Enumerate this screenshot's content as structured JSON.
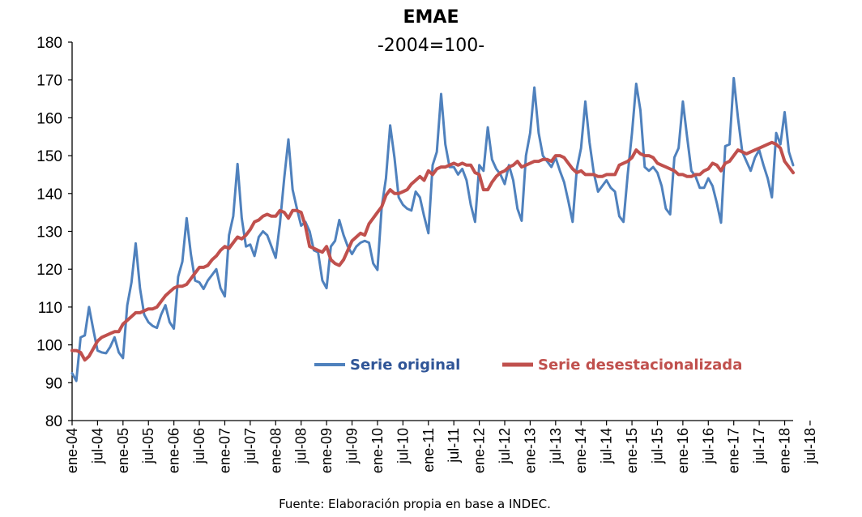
{
  "chart_data": {
    "type": "line",
    "title": "EMAE",
    "subtitle": "-2004=100-",
    "source": "Fuente: Elaboración propia en base a INDEC.",
    "ylim": [
      80,
      180
    ],
    "yticks": [
      80,
      90,
      100,
      110,
      120,
      130,
      140,
      150,
      160,
      170,
      180
    ],
    "xtick_labels": [
      "ene-04",
      "jul-04",
      "ene-05",
      "jul-05",
      "ene-06",
      "jul-06",
      "ene-07",
      "jul-07",
      "ene-08",
      "jul-08",
      "ene-09",
      "jul-09",
      "ene-10",
      "jul-10",
      "ene-11",
      "jul-11",
      "ene-12",
      "jul-12",
      "ene-13",
      "jul-13",
      "ene-14",
      "jul-14",
      "ene-15",
      "jul-15",
      "ene-16",
      "jul-16",
      "ene-17",
      "jul-17",
      "ene-18",
      "jul-18"
    ],
    "grid": false,
    "legend_position": "center",
    "series": [
      {
        "name": "Serie original",
        "color": "#4F81BD",
        "start": "ene-04",
        "values": [
          92.5,
          90.5,
          102.0,
          102.5,
          110.0,
          104.0,
          98.5,
          98.0,
          97.8,
          99.5,
          102.0,
          98.0,
          96.5,
          110.5,
          116.5,
          126.8,
          115.0,
          108.0,
          106.0,
          105.0,
          104.5,
          108.0,
          110.5,
          106.0,
          104.3,
          118.0,
          122.0,
          133.5,
          124.0,
          117.0,
          116.5,
          114.8,
          117.0,
          118.5,
          120.0,
          115.0,
          112.8,
          129.0,
          134.0,
          147.8,
          133.5,
          126.0,
          126.5,
          123.5,
          128.5,
          130.0,
          129.0,
          126.0,
          123.0,
          132.0,
          144.0,
          154.3,
          141.0,
          136.0,
          131.5,
          132.5,
          130.0,
          125.0,
          124.5,
          117.0,
          115.0,
          126.0,
          127.5,
          133.0,
          129.0,
          126.0,
          124.0,
          126.0,
          127.0,
          127.5,
          127.0,
          121.5,
          119.8,
          136.5,
          144.0,
          158.0,
          149.5,
          139.0,
          137.0,
          136.0,
          135.5,
          140.5,
          139.0,
          134.0,
          129.5,
          147.5,
          151.0,
          166.3,
          153.0,
          147.0,
          147.0,
          145.0,
          146.5,
          143.5,
          137.0,
          132.5,
          147.5,
          146.0,
          157.5,
          149.0,
          146.5,
          145.0,
          142.5,
          147.5,
          143.5,
          136.0,
          132.8,
          150.0,
          156.0,
          168.0,
          156.0,
          150.0,
          148.5,
          147.0,
          149.5,
          146.0,
          143.0,
          138.0,
          132.5,
          146.5,
          152.0,
          164.3,
          153.5,
          145.5,
          140.5,
          142.0,
          143.5,
          141.5,
          140.5,
          134.0,
          132.5,
          145.0,
          156.0,
          169.0,
          162.0,
          147.0,
          146.0,
          147.0,
          145.5,
          142.0,
          136.0,
          134.5,
          149.5,
          152.0,
          164.3,
          155.0,
          146.0,
          144.5,
          141.5,
          141.5,
          144.0,
          142.0,
          137.5,
          132.3,
          152.5,
          153.0,
          170.5,
          160.0,
          151.0,
          148.5,
          146.0,
          149.5,
          151.5,
          147.5,
          144.0,
          139.0,
          156.0,
          153.0,
          161.5,
          151.0,
          147.5
        ]
      },
      {
        "name": "Serie desestacionalizada",
        "color": "#C0504D",
        "start": "ene-04",
        "values": [
          98.5,
          98.5,
          98.0,
          96.0,
          97.0,
          99.0,
          101.0,
          102.0,
          102.5,
          103.0,
          103.5,
          103.5,
          105.5,
          106.5,
          107.5,
          108.5,
          108.5,
          109.0,
          109.5,
          109.5,
          110.0,
          111.5,
          113.0,
          114.0,
          115.0,
          115.5,
          115.5,
          116.0,
          117.5,
          119.0,
          120.5,
          120.5,
          121.0,
          122.5,
          123.5,
          125.0,
          126.0,
          125.5,
          127.0,
          128.5,
          128.0,
          129.0,
          130.5,
          132.5,
          133.0,
          134.0,
          134.5,
          134.0,
          134.0,
          135.5,
          135.0,
          133.5,
          135.5,
          135.5,
          135.0,
          131.5,
          126.0,
          125.5,
          125.0,
          124.5,
          126.0,
          122.5,
          121.5,
          121.0,
          122.5,
          125.0,
          127.5,
          128.5,
          129.5,
          129.0,
          132.0,
          133.5,
          135.0,
          136.5,
          139.5,
          141.0,
          140.0,
          140.0,
          140.5,
          141.0,
          142.5,
          143.5,
          144.5,
          143.5,
          146.0,
          145.0,
          146.5,
          147.0,
          147.0,
          147.5,
          148.0,
          147.5,
          148.0,
          147.5,
          147.5,
          145.5,
          145.0,
          141.0,
          141.0,
          143.0,
          144.5,
          145.5,
          146.0,
          147.0,
          147.5,
          148.5,
          147.0,
          147.5,
          148.0,
          148.5,
          148.5,
          149.0,
          149.0,
          148.5,
          150.0,
          150.0,
          149.5,
          148.0,
          146.5,
          145.5,
          146.0,
          145.0,
          145.0,
          145.0,
          144.5,
          144.5,
          145.0,
          145.0,
          145.0,
          147.5,
          148.0,
          148.5,
          149.5,
          151.5,
          150.5,
          150.0,
          150.0,
          149.5,
          148.0,
          147.5,
          147.0,
          146.5,
          146.0,
          145.0,
          145.0,
          144.5,
          144.5,
          145.0,
          145.0,
          146.0,
          146.5,
          148.0,
          147.5,
          146.0,
          148.0,
          148.5,
          150.0,
          151.5,
          151.0,
          150.5,
          151.0,
          151.5,
          152.0,
          152.5,
          153.0,
          153.5,
          153.0,
          152.0,
          148.5,
          147.0,
          145.5
        ]
      }
    ]
  }
}
